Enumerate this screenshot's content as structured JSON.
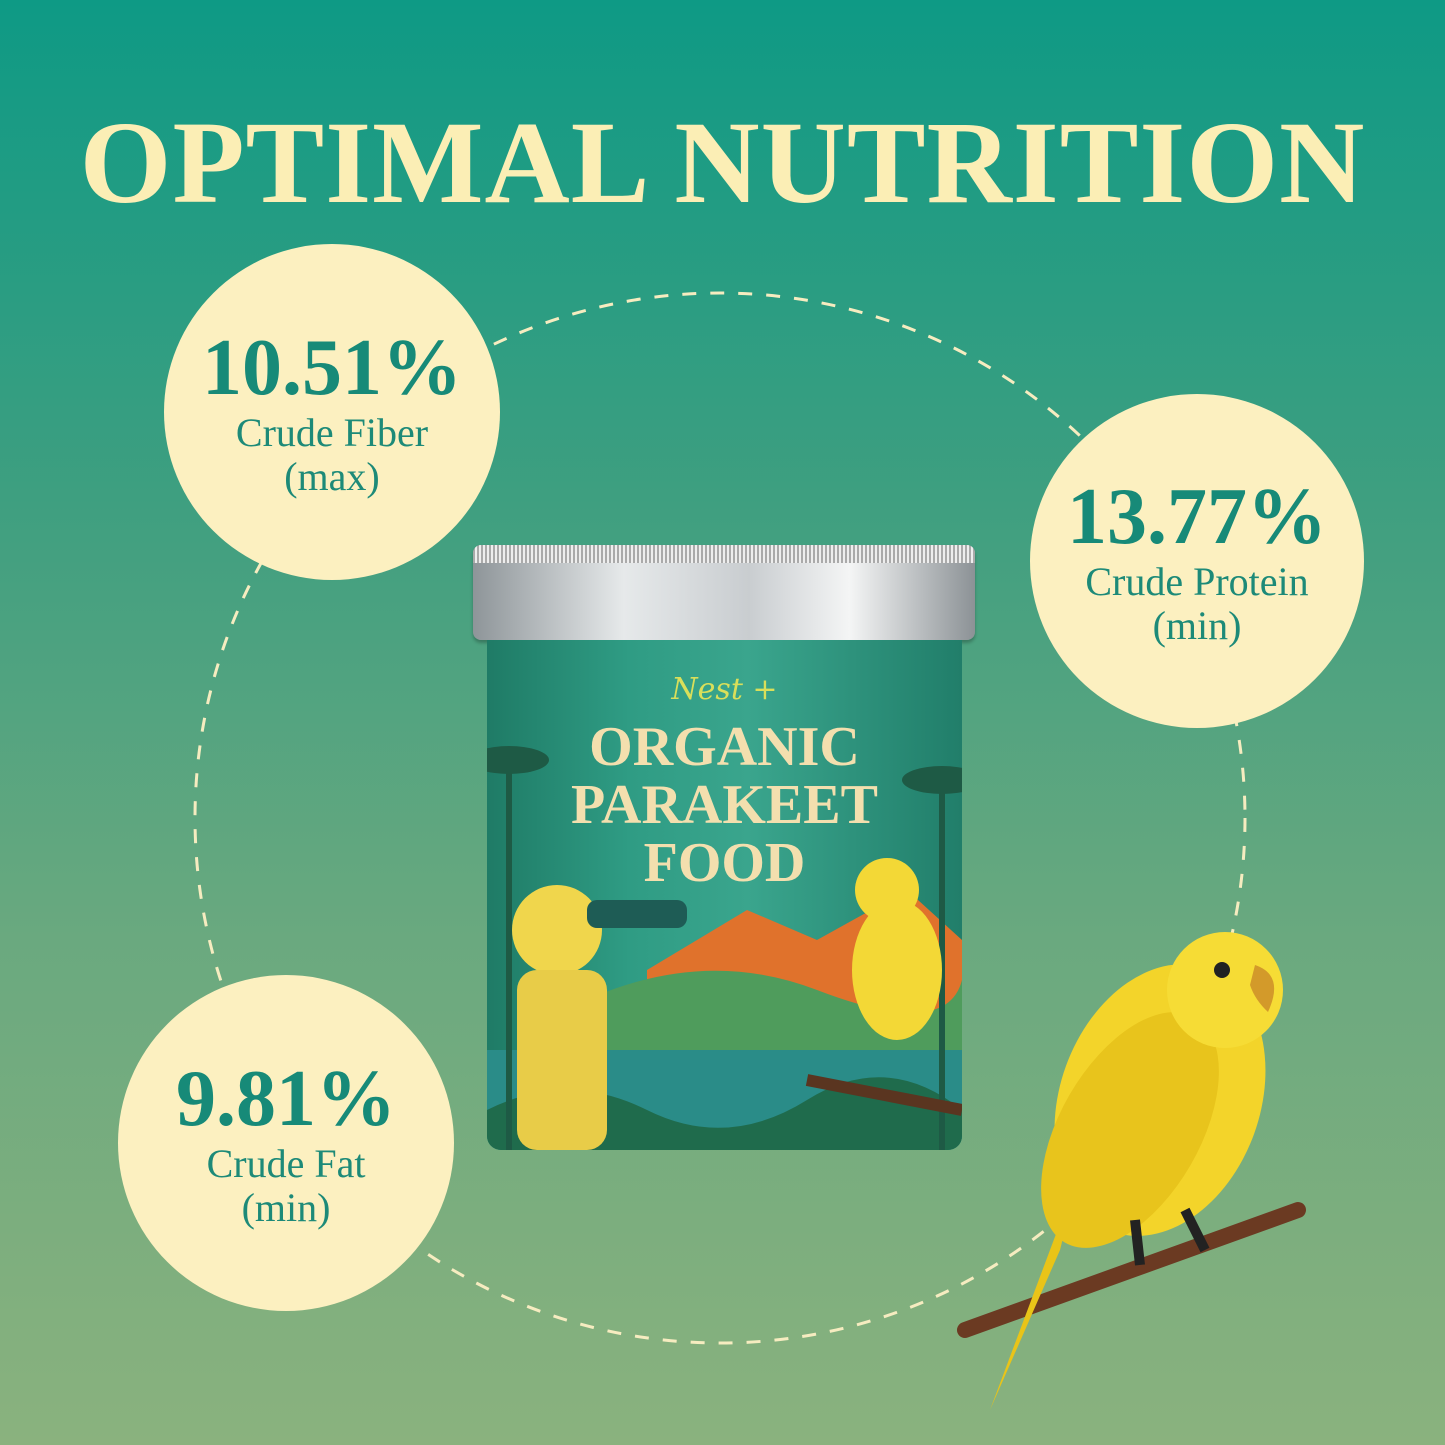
{
  "title": "OPTIMAL NUTRITION",
  "stats": [
    {
      "value": "10.51%",
      "label": "Crude Fiber",
      "qualifier": "(max)"
    },
    {
      "value": "13.77%",
      "label": "Crude Protein",
      "qualifier": "(min)"
    },
    {
      "value": "9.81%",
      "label": "Crude Fat",
      "qualifier": "(min)"
    }
  ],
  "product": {
    "brand": "Nest +",
    "name_line1": "ORGANIC",
    "name_line2": "PARAKEET",
    "name_line3": "FOOD"
  },
  "colors": {
    "background_top": "#0e9a85",
    "background_bottom": "#8ab27e",
    "bubble": "#fcf0c0",
    "accent_text": "#178a78",
    "title": "#fbeeb5"
  }
}
